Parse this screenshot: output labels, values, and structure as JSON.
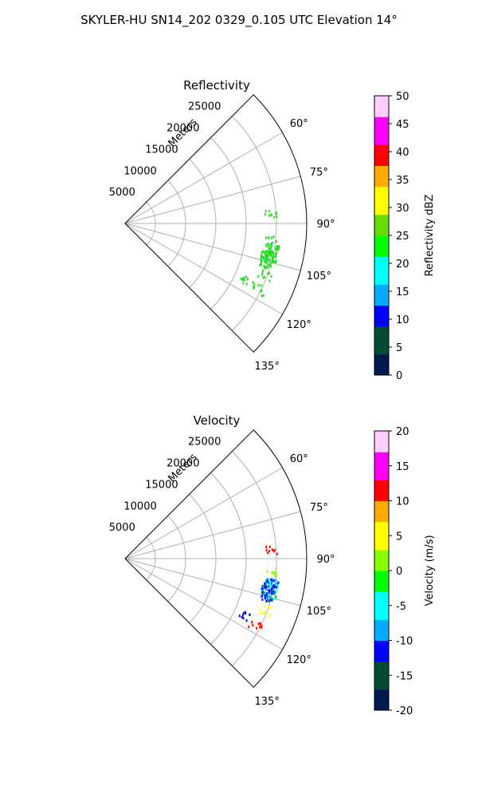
{
  "title": "SKYLER-HU  SN14_202  0329_0.105 UTC Elevation 14°",
  "colors": {
    "grid": "#b0b0b0",
    "frame": "#000000",
    "reflectivity_echo": "#22dd22",
    "velocity_colormap": [
      "#001a4d",
      "#004d33",
      "#0000ff",
      "#00aaff",
      "#00ffff",
      "#00ff00",
      "#88ff00",
      "#ffff00",
      "#ffaa00",
      "#ff0000",
      "#ff00ff",
      "#ffccff"
    ],
    "reflectivity_colormap": [
      "#001a4d",
      "#004d33",
      "#0000ff",
      "#00aaff",
      "#00ffff",
      "#00ff00",
      "#66dd00",
      "#ffff00",
      "#ffaa00",
      "#ff0000",
      "#ff00ff",
      "#ffccff"
    ]
  },
  "chart_data": [
    {
      "type": "polar-sector",
      "title": "Reflectivity",
      "radial_label": "Meters",
      "radial_ticks": [
        "5000",
        "10000",
        "15000",
        "20000",
        "25000"
      ],
      "radial_range": [
        0,
        30000
      ],
      "angle_range_deg": [
        45,
        135
      ],
      "angle_ticks": [
        "60°",
        "75°",
        "90°",
        "105°",
        "120°",
        "135°"
      ],
      "colorbar": {
        "label": "Reflectivity dBZ",
        "range": [
          0,
          50
        ],
        "ticks": [
          "0",
          "5",
          "10",
          "15",
          "20",
          "25",
          "30",
          "35",
          "40",
          "45",
          "50"
        ]
      },
      "echoes": [
        {
          "angle_deg": 101,
          "range_m": 24500,
          "value": 20
        },
        {
          "angle_deg": 104,
          "range_m": 24000,
          "value": 20
        },
        {
          "angle_deg": 110,
          "range_m": 24500,
          "value": 21
        },
        {
          "angle_deg": 96,
          "range_m": 24000,
          "value": 19
        },
        {
          "angle_deg": 86,
          "range_m": 24000,
          "value": 18
        },
        {
          "angle_deg": 115,
          "range_m": 22000,
          "value": 19
        },
        {
          "angle_deg": 116,
          "range_m": 24500,
          "value": 18
        }
      ]
    },
    {
      "type": "polar-sector",
      "title": "Velocity",
      "radial_label": "Meters",
      "radial_ticks": [
        "5000",
        "10000",
        "15000",
        "20000",
        "25000"
      ],
      "radial_range": [
        0,
        30000
      ],
      "angle_range_deg": [
        45,
        135
      ],
      "angle_ticks": [
        "60°",
        "75°",
        "90°",
        "105°",
        "120°",
        "135°"
      ],
      "colorbar": {
        "label": "Velocity (m/s)",
        "range": [
          -20,
          20
        ],
        "ticks": [
          "-20",
          "-15",
          "-10",
          "-5",
          "0",
          "5",
          "10",
          "15",
          "20"
        ]
      },
      "echoes": [
        {
          "angle_deg": 101,
          "range_m": 24500,
          "value": -8
        },
        {
          "angle_deg": 103,
          "range_m": 24000,
          "value": -11
        },
        {
          "angle_deg": 96,
          "range_m": 24000,
          "value": 1
        },
        {
          "angle_deg": 86,
          "range_m": 24000,
          "value": 12
        },
        {
          "angle_deg": 110,
          "range_m": 24500,
          "value": 4
        },
        {
          "angle_deg": 115,
          "range_m": 22000,
          "value": -12
        },
        {
          "angle_deg": 117,
          "range_m": 24000,
          "value": 12
        }
      ]
    }
  ]
}
